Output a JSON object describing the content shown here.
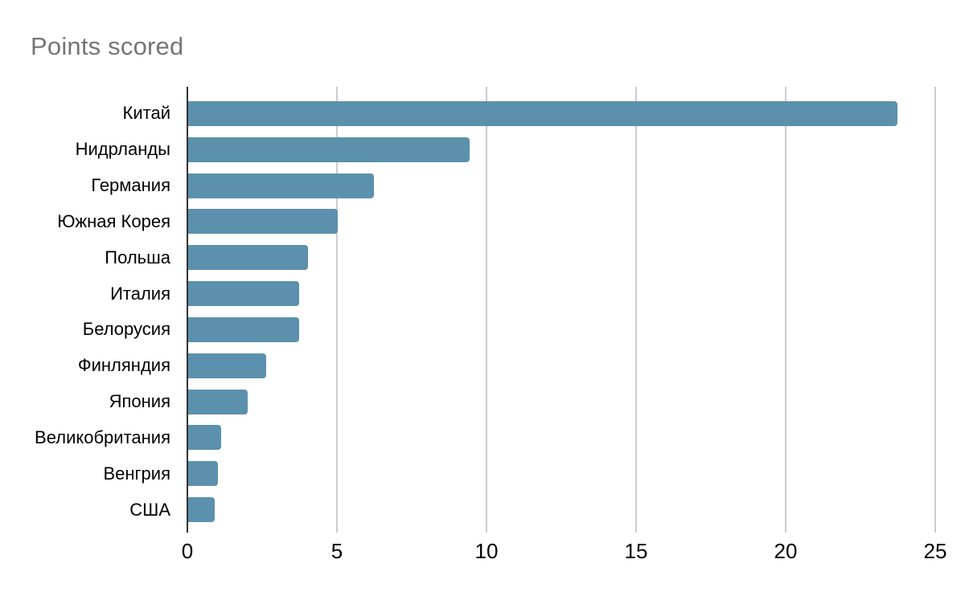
{
  "chart_data": {
    "type": "bar",
    "orientation": "horizontal",
    "title": "Points scored",
    "categories": [
      "Китай",
      "Нидрланды",
      "Германия",
      "Южная Корея",
      "Польша",
      "Италия",
      "Белорусия",
      "Финляндия",
      "Япония",
      "Великобритания",
      "Венгрия",
      "США"
    ],
    "values": [
      23.7,
      9.4,
      6.2,
      5.0,
      4.0,
      3.7,
      3.7,
      2.6,
      2.0,
      1.1,
      1.0,
      0.9
    ],
    "xlabel": "",
    "ylabel": "",
    "xlim": [
      0,
      25
    ],
    "xticks": [
      0,
      5,
      10,
      15,
      20,
      25
    ],
    "grid": true,
    "legend": "none",
    "bar_color": "#5b91ac",
    "gridline_color": "#cccccc",
    "axis_color": "#333333",
    "title_color": "#757575",
    "text_color": "#000000",
    "background_color": "#ffffff"
  }
}
